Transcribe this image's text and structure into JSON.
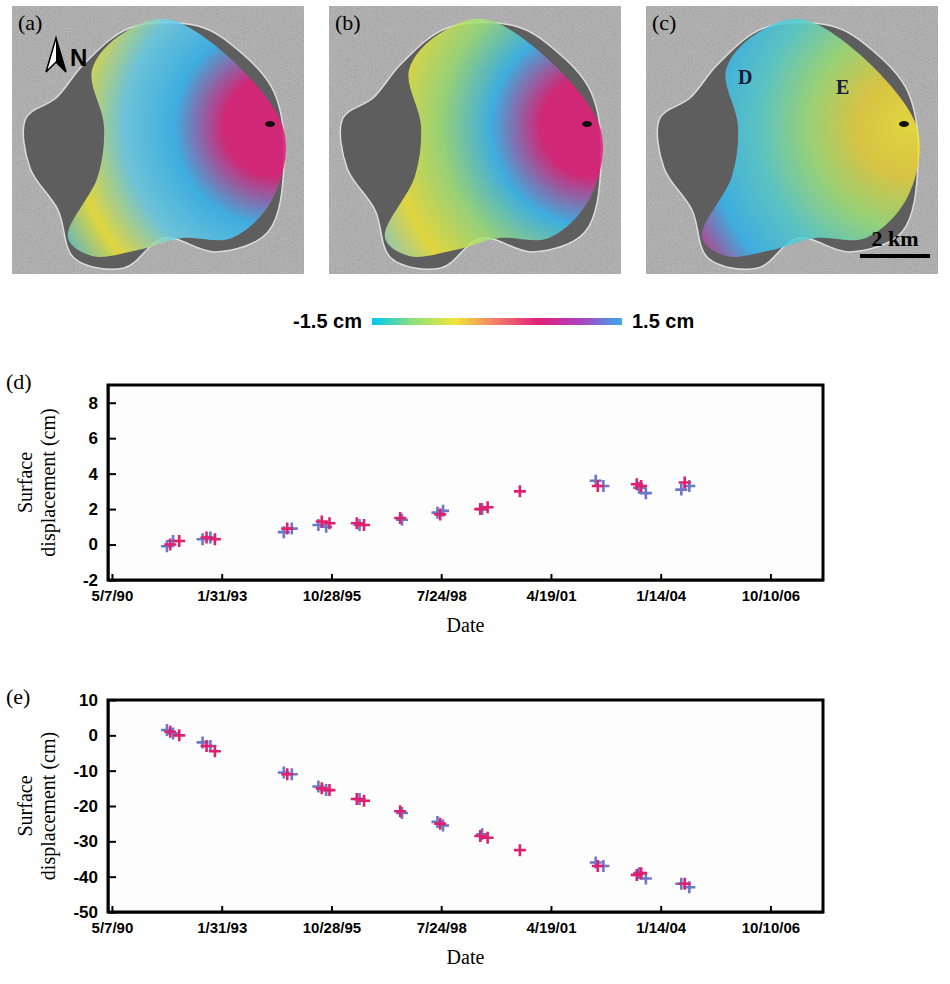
{
  "images": {
    "panels": [
      {
        "label": "(a)",
        "north": "N"
      },
      {
        "label": "(b)"
      },
      {
        "label": "(c)",
        "sites": [
          {
            "label": "D"
          },
          {
            "label": "E"
          }
        ],
        "scale_bar": "2 km"
      }
    ],
    "colorbar": {
      "range": [
        -1.5,
        1.5
      ],
      "ticks": [
        {
          "value": -1.5,
          "label": "-1.5 cm"
        },
        {
          "value": 1.5,
          "label": "1.5 cm"
        }
      ],
      "colors": [
        "#00c8f2",
        "#8fe07a",
        "#f2e63a",
        "#f07a6a",
        "#e0207a",
        "#b040c0",
        "#3aa8f0"
      ]
    }
  },
  "chart_data": [
    {
      "type": "scatter",
      "label": "(d)",
      "x_label": "Date",
      "y_label": "Surface displacement (cm)",
      "xlim": [
        "1990-04-01",
        "2008-02-01"
      ],
      "xticks": [
        {
          "value": "1990-05-07",
          "label": "5/7/90"
        },
        {
          "value": "1993-01-31",
          "label": "1/31/93"
        },
        {
          "value": "1995-10-28",
          "label": "10/28/95"
        },
        {
          "value": "1998-07-24",
          "label": "7/24/98"
        },
        {
          "value": "2001-04-19",
          "label": "4/19/01"
        },
        {
          "value": "2004-01-14",
          "label": "1/14/04"
        },
        {
          "value": "2006-10-10",
          "label": "10/10/06"
        }
      ],
      "ylim": [
        -2,
        9
      ],
      "yticks": [
        -2,
        0,
        2,
        4,
        6,
        8
      ],
      "series": [
        {
          "color": "#6a78c8",
          "marker": "plus",
          "x": [
            "1991-09-20",
            "1991-11-15",
            "1992-08-10",
            "1992-10-20",
            "1994-08-20",
            "1994-11-01",
            "1995-07-01",
            "1995-09-10",
            "1996-07-10",
            "1997-08-01",
            "1998-06-20",
            "1998-08-10",
            "1999-08-01",
            "2002-06-01",
            "2002-08-10",
            "2003-07-01",
            "2003-09-01",
            "2004-07-20",
            "2004-10-01"
          ],
          "values": [
            -0.1,
            0.2,
            0.3,
            0.4,
            0.7,
            0.9,
            1.1,
            1.0,
            1.1,
            1.4,
            1.8,
            1.9,
            2.0,
            3.6,
            3.3,
            3.2,
            2.9,
            3.1,
            3.3
          ]
        },
        {
          "color": "#e0206e",
          "marker": "plus",
          "x": [
            "1991-10-20",
            "1992-01-10",
            "1992-09-15",
            "1992-11-30",
            "1994-09-20",
            "1995-08-01",
            "1995-10-10",
            "1996-06-15",
            "1996-08-20",
            "1997-07-15",
            "1998-07-15",
            "1999-07-15",
            "1999-09-20",
            "2000-07-10",
            "2002-06-20",
            "2003-06-10",
            "2003-07-20",
            "2004-08-20"
          ],
          "values": [
            0.0,
            0.2,
            0.4,
            0.3,
            0.9,
            1.3,
            1.2,
            1.2,
            1.1,
            1.5,
            1.7,
            2.0,
            2.1,
            3.0,
            3.3,
            3.4,
            3.3,
            3.5
          ]
        }
      ]
    },
    {
      "type": "scatter",
      "label": "(e)",
      "x_label": "Date",
      "y_label": "Surface displacement (cm)",
      "xlim": [
        "1990-04-01",
        "2008-02-01"
      ],
      "xticks": [
        {
          "value": "1990-05-07",
          "label": "5/7/90"
        },
        {
          "value": "1993-01-31",
          "label": "1/31/93"
        },
        {
          "value": "1995-10-28",
          "label": "10/28/95"
        },
        {
          "value": "1998-07-24",
          "label": "7/24/98"
        },
        {
          "value": "2001-04-19",
          "label": "4/19/01"
        },
        {
          "value": "2004-01-14",
          "label": "1/14/04"
        },
        {
          "value": "2006-10-10",
          "label": "10/10/06"
        }
      ],
      "ylim": [
        -50,
        10
      ],
      "yticks": [
        -50,
        -40,
        -30,
        -20,
        -10,
        0,
        10
      ],
      "series": [
        {
          "color": "#6a78c8",
          "marker": "plus",
          "x": [
            "1991-09-20",
            "1991-11-15",
            "1992-08-10",
            "1992-10-20",
            "1994-08-20",
            "1994-11-01",
            "1995-07-01",
            "1995-09-10",
            "1996-07-10",
            "1997-08-01",
            "1998-06-20",
            "1998-08-10",
            "1999-08-01",
            "2002-06-01",
            "2002-08-10",
            "2003-07-01",
            "2003-09-01",
            "2004-07-20",
            "2004-10-01"
          ],
          "values": [
            1.5,
            0.5,
            -2,
            -3,
            -10.5,
            -11,
            -14.5,
            -15.5,
            -18,
            -22,
            -24.5,
            -25.5,
            -28,
            -36,
            -37,
            -39,
            -40.5,
            -42,
            -43
          ]
        },
        {
          "color": "#e0206e",
          "marker": "plus",
          "x": [
            "1991-10-20",
            "1992-01-10",
            "1992-09-15",
            "1992-11-30",
            "1994-09-20",
            "1995-08-01",
            "1995-10-10",
            "1996-06-15",
            "1996-08-20",
            "1997-07-15",
            "1998-07-15",
            "1999-07-15",
            "1999-09-20",
            "2000-07-10",
            "2002-06-20",
            "2003-06-10",
            "2003-07-20",
            "2004-08-20"
          ],
          "values": [
            1,
            0,
            -3,
            -4.5,
            -11,
            -15,
            -15.5,
            -18,
            -18.5,
            -21.5,
            -25,
            -28.5,
            -29,
            -32.5,
            -37,
            -39.5,
            -39,
            -42
          ]
        }
      ]
    }
  ]
}
